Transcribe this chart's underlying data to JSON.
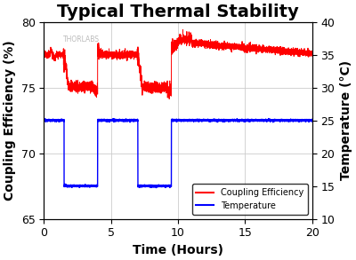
{
  "title": "Typical Thermal Stability",
  "xlabel": "Time (Hours)",
  "ylabel_left": "Coupling Efficiency (%)",
  "ylabel_right": "Temperature (°C)",
  "xlim": [
    0,
    20
  ],
  "ylim_left": [
    65,
    80
  ],
  "ylim_right": [
    10,
    40
  ],
  "xticks": [
    0,
    5,
    10,
    15,
    20
  ],
  "yticks_left": [
    65,
    70,
    75,
    80
  ],
  "yticks_right": [
    10,
    15,
    20,
    25,
    30,
    35,
    40
  ],
  "bg_color": "#ffffff",
  "grid_color": "#cccccc",
  "line_color_red": "#ff0000",
  "line_color_blue": "#0000ff",
  "legend_labels": [
    "Coupling Efficiency",
    "Temperature"
  ],
  "watermark": "THORLABS",
  "title_fontsize": 14,
  "axis_label_fontsize": 10,
  "tick_fontsize": 9,
  "temp_high": 25.0,
  "temp_low": 15.0,
  "temp_drop1_start": 1.5,
  "temp_drop1_end": 4.0,
  "temp_drop2_start": 7.0,
  "temp_drop2_end": 9.5,
  "eff_baseline_early": 77.5,
  "eff_dip": 73.5,
  "eff_baseline_late": 77.5,
  "eff_peak_late": 78.5
}
